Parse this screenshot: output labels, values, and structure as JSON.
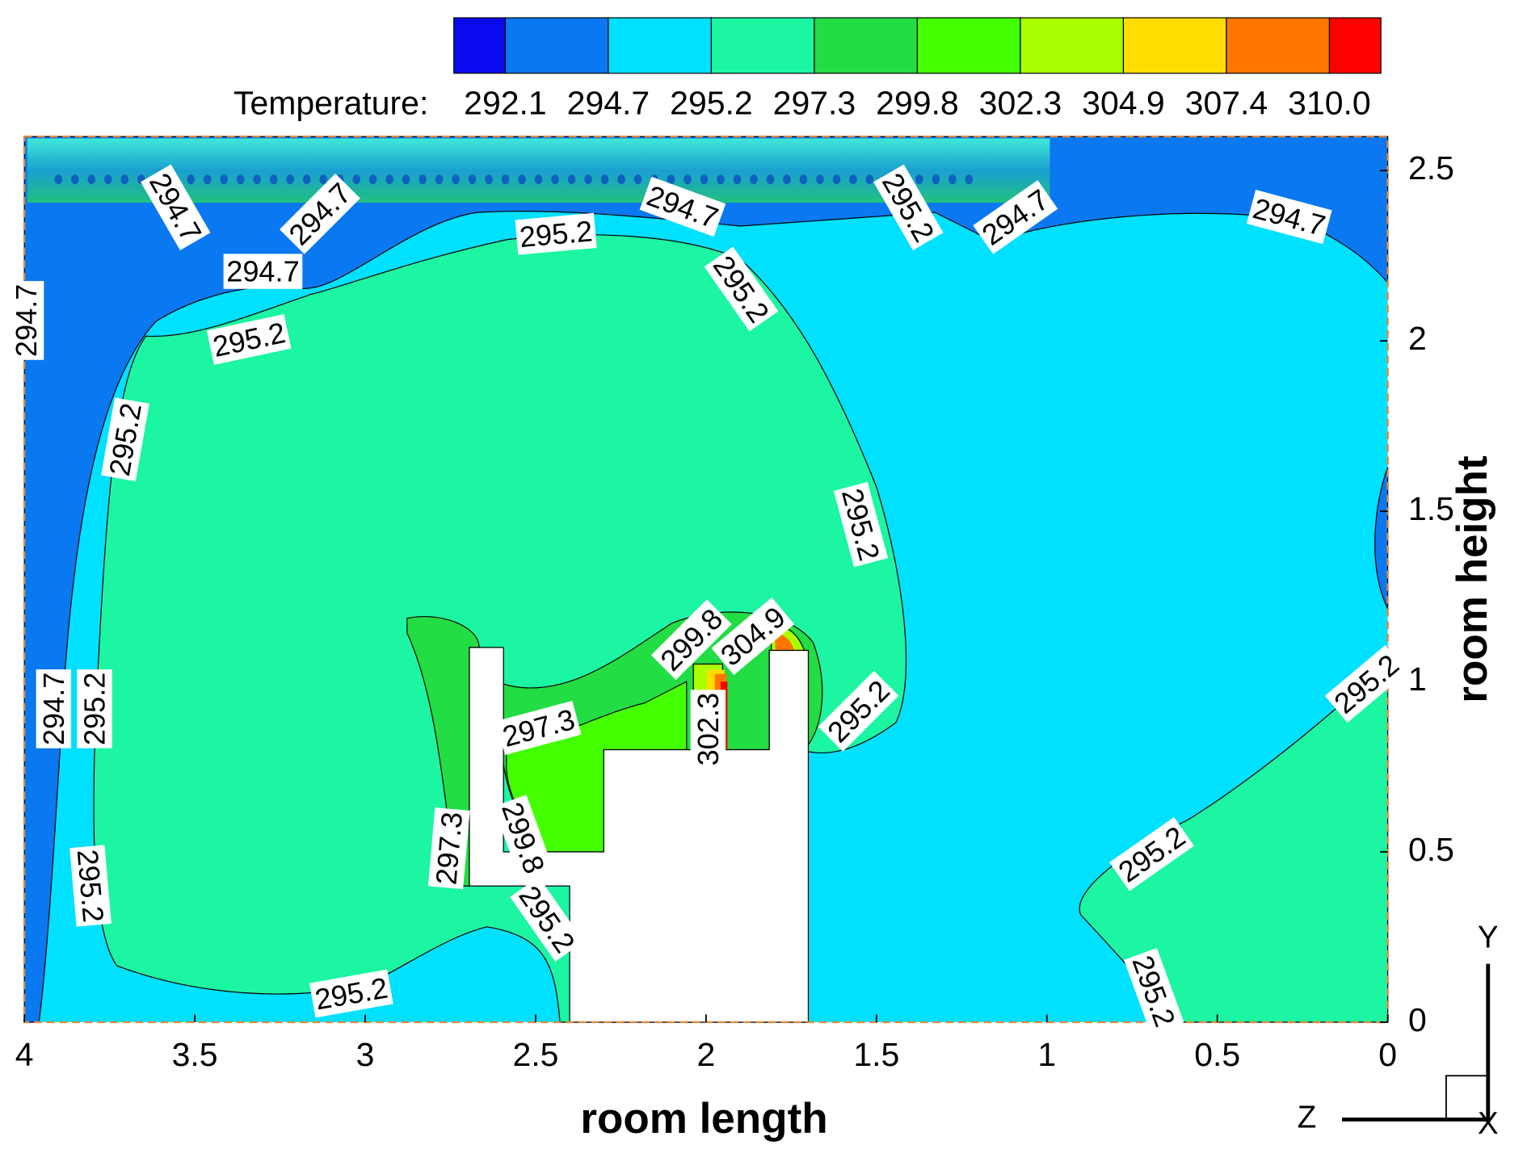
{
  "chart_data": {
    "type": "contour",
    "x_label": "room length",
    "y_label": "room height",
    "xlim": [
      4,
      0
    ],
    "ylim": [
      0,
      2.6
    ],
    "xticks": [
      4,
      3.5,
      3,
      2.5,
      2,
      1.5,
      1,
      0.5,
      0
    ],
    "yticks": [
      0,
      0.5,
      1,
      1.5,
      2,
      2.5
    ],
    "grid": false,
    "colorbar": {
      "title": "Temperature:",
      "levels": [
        292.1,
        294.7,
        295.2,
        297.3,
        299.8,
        302.3,
        304.9,
        307.4,
        {
          "value": 310,
          "label": "310.0"
        }
      ],
      "colors": [
        "#0a0aee",
        "#0a78f0",
        "#00e0ff",
        "#1cf5a2",
        "#22dd44",
        "#44ff00",
        "#aaff00",
        "#ffdd00",
        "#ff7700",
        "#ff0000"
      ]
    },
    "contour_labels": [
      {
        "value": 294.7,
        "x": 3.56,
        "y": 2.39
      },
      {
        "value": 294.7,
        "x": 3.13,
        "y": 2.37
      },
      {
        "value": 294.7,
        "x": 3.3,
        "y": 2.2
      },
      {
        "value": 294.7,
        "x": 3.99,
        "y": 2.06
      },
      {
        "value": 295.2,
        "x": 2.44,
        "y": 2.31
      },
      {
        "value": 294.7,
        "x": 2.07,
        "y": 2.39
      },
      {
        "value": 295.2,
        "x": 1.41,
        "y": 2.39
      },
      {
        "value": 294.7,
        "x": 1.09,
        "y": 2.36
      },
      {
        "value": 294.7,
        "x": 0.29,
        "y": 2.36
      },
      {
        "value": 295.2,
        "x": 3.34,
        "y": 2.0
      },
      {
        "value": 295.2,
        "x": 1.9,
        "y": 2.15
      },
      {
        "value": 295.2,
        "x": 3.7,
        "y": 1.71
      },
      {
        "value": 295.2,
        "x": 1.55,
        "y": 1.46
      },
      {
        "value": 294.7,
        "x": 3.91,
        "y": 0.92
      },
      {
        "value": 295.2,
        "x": 3.79,
        "y": 0.92
      },
      {
        "value": 297.3,
        "x": 2.49,
        "y": 0.86
      },
      {
        "value": 299.8,
        "x": 2.04,
        "y": 1.12
      },
      {
        "value": 304.9,
        "x": 1.86,
        "y": 1.13
      },
      {
        "value": 302.3,
        "x": 1.99,
        "y": 0.86
      },
      {
        "value": 295.2,
        "x": 1.55,
        "y": 0.91
      },
      {
        "value": 295.2,
        "x": 0.06,
        "y": 0.99
      },
      {
        "value": 297.3,
        "x": 2.75,
        "y": 0.51
      },
      {
        "value": 299.8,
        "x": 2.54,
        "y": 0.54
      },
      {
        "value": 295.2,
        "x": 2.47,
        "y": 0.3
      },
      {
        "value": 295.2,
        "x": 3.81,
        "y": 0.4
      },
      {
        "value": 295.2,
        "x": 0.69,
        "y": 0.49
      },
      {
        "value": 295.2,
        "x": 3.04,
        "y": 0.08
      },
      {
        "value": 295.2,
        "x": 0.69,
        "y": 0.09
      }
    ],
    "axis_triad": {
      "x": "X",
      "y": "Y",
      "z": "Z"
    }
  }
}
